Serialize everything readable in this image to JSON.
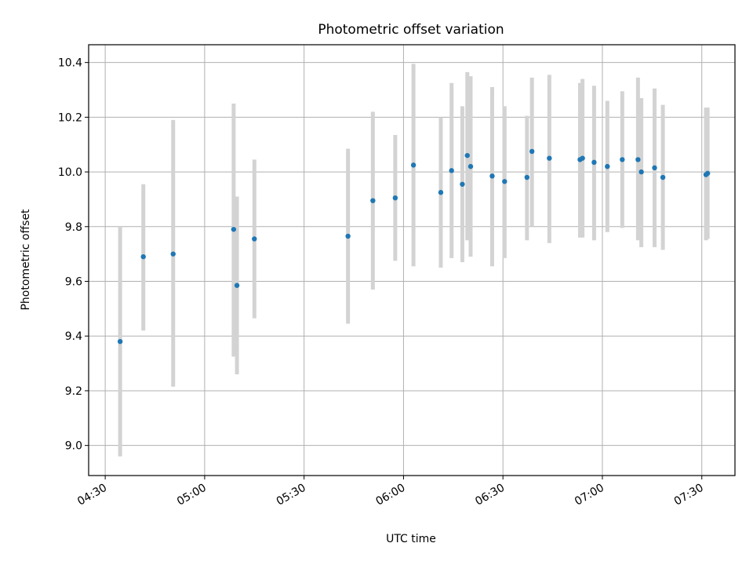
{
  "chart_data": {
    "type": "scatter",
    "title": "Photometric offset variation",
    "xlabel": "UTC time",
    "ylabel": "Photometric offset",
    "xlim": [
      "04:25",
      "07:40"
    ],
    "ylim": [
      8.89,
      10.465
    ],
    "x_ticks": [
      "04:30",
      "05:00",
      "05:30",
      "06:00",
      "06:30",
      "07:00",
      "07:30"
    ],
    "y_ticks": [
      9.0,
      9.2,
      9.4,
      9.6,
      9.8,
      10.0,
      10.2,
      10.4
    ],
    "grid": true,
    "series": [
      {
        "marker_color": "#1f77b4",
        "errorbar_color": "#d3d3d3",
        "points": [
          {
            "t": "04:34:30",
            "y": 9.38,
            "lo": 8.96,
            "hi": 9.8
          },
          {
            "t": "04:41:30",
            "y": 9.69,
            "lo": 9.42,
            "hi": 9.955
          },
          {
            "t": "04:50:30",
            "y": 9.7,
            "lo": 9.215,
            "hi": 10.19
          },
          {
            "t": "05:08:45",
            "y": 9.79,
            "lo": 9.325,
            "hi": 10.25
          },
          {
            "t": "05:09:45",
            "y": 9.585,
            "lo": 9.26,
            "hi": 9.91
          },
          {
            "t": "05:15:00",
            "y": 9.755,
            "lo": 9.465,
            "hi": 10.045
          },
          {
            "t": "05:43:15",
            "y": 9.765,
            "lo": 9.445,
            "hi": 10.085
          },
          {
            "t": "05:50:45",
            "y": 9.895,
            "lo": 9.57,
            "hi": 10.22
          },
          {
            "t": "05:57:30",
            "y": 9.905,
            "lo": 9.675,
            "hi": 10.135
          },
          {
            "t": "06:03:00",
            "y": 10.025,
            "lo": 9.655,
            "hi": 10.395
          },
          {
            "t": "06:11:15",
            "y": 9.925,
            "lo": 9.65,
            "hi": 10.2
          },
          {
            "t": "06:14:30",
            "y": 10.005,
            "lo": 9.685,
            "hi": 10.325
          },
          {
            "t": "06:17:45",
            "y": 9.955,
            "lo": 9.67,
            "hi": 10.24
          },
          {
            "t": "06:19:15",
            "y": 10.06,
            "lo": 9.75,
            "hi": 10.365
          },
          {
            "t": "06:20:15",
            "y": 10.02,
            "lo": 9.69,
            "hi": 10.35
          },
          {
            "t": "06:26:45",
            "y": 9.985,
            "lo": 9.655,
            "hi": 10.31
          },
          {
            "t": "06:30:30",
            "y": 9.965,
            "lo": 9.685,
            "hi": 10.24
          },
          {
            "t": "06:37:15",
            "y": 9.98,
            "lo": 9.75,
            "hi": 10.205
          },
          {
            "t": "06:38:45",
            "y": 10.075,
            "lo": 9.8,
            "hi": 10.345
          },
          {
            "t": "06:44:00",
            "y": 10.05,
            "lo": 9.74,
            "hi": 10.355
          },
          {
            "t": "06:53:15",
            "y": 10.045,
            "lo": 9.76,
            "hi": 10.325
          },
          {
            "t": "06:54:00",
            "y": 10.05,
            "lo": 9.76,
            "hi": 10.34
          },
          {
            "t": "06:57:30",
            "y": 10.035,
            "lo": 9.75,
            "hi": 10.315
          },
          {
            "t": "07:01:30",
            "y": 10.02,
            "lo": 9.78,
            "hi": 10.26
          },
          {
            "t": "07:06:00",
            "y": 10.045,
            "lo": 9.795,
            "hi": 10.295
          },
          {
            "t": "07:10:45",
            "y": 10.045,
            "lo": 9.75,
            "hi": 10.345
          },
          {
            "t": "07:11:45",
            "y": 10.0,
            "lo": 9.725,
            "hi": 10.27
          },
          {
            "t": "07:15:45",
            "y": 10.015,
            "lo": 9.725,
            "hi": 10.305
          },
          {
            "t": "07:18:15",
            "y": 9.98,
            "lo": 9.715,
            "hi": 10.245
          },
          {
            "t": "07:31:15",
            "y": 9.99,
            "lo": 9.75,
            "hi": 10.235
          },
          {
            "t": "07:31:45",
            "y": 9.995,
            "lo": 9.755,
            "hi": 10.235
          }
        ]
      }
    ]
  }
}
